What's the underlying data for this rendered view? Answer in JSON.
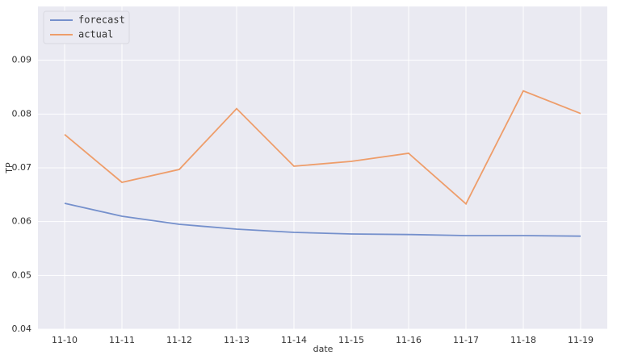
{
  "chart_data": {
    "type": "line",
    "x_label": "date",
    "y_label": "TP",
    "categories": [
      "11-10",
      "11-11",
      "11-12",
      "11-13",
      "11-14",
      "11-15",
      "11-16",
      "11-17",
      "11-18",
      "11-19"
    ],
    "series": [
      {
        "name": "forecast",
        "color": "#7590cc",
        "values": [
          0.0634,
          0.061,
          0.0595,
          0.0586,
          0.058,
          0.0577,
          0.0576,
          0.0574,
          0.0574,
          0.0573
        ]
      },
      {
        "name": "actual",
        "color": "#ee9d6a",
        "values": [
          0.0762,
          0.0673,
          0.0697,
          0.081,
          0.0703,
          0.0712,
          0.0727,
          0.0633,
          0.0843,
          0.0801
        ]
      }
    ],
    "ylim": [
      0.04,
      0.1
    ],
    "yticks": [
      0.04,
      0.05,
      0.06,
      0.07,
      0.08,
      0.09
    ],
    "grid": true,
    "legend": "upper-left"
  }
}
